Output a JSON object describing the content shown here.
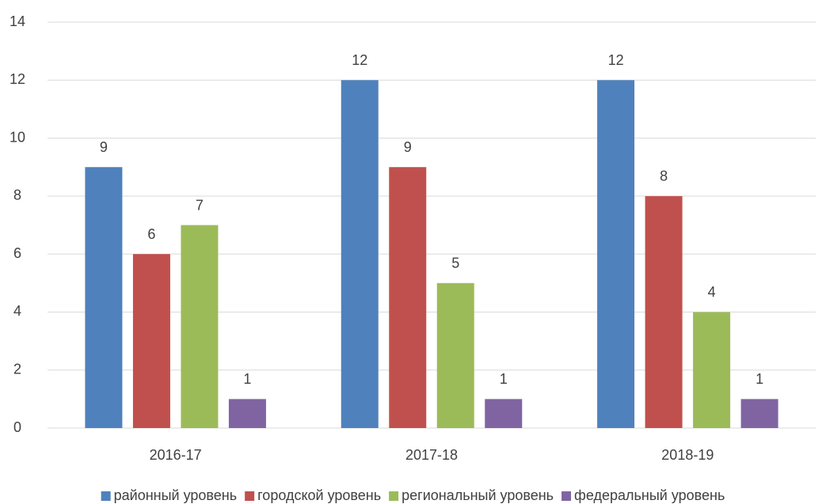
{
  "chart_data": {
    "type": "bar",
    "categories": [
      "2016-17",
      "2017-18",
      "2018-19"
    ],
    "series": [
      {
        "name": "районный уровень",
        "color": "#4f81bd",
        "values": [
          9,
          12,
          12
        ]
      },
      {
        "name": "городской уровень",
        "color": "#c0504d",
        "values": [
          6,
          9,
          8
        ]
      },
      {
        "name": "региональный уровень",
        "color": "#9bbb59",
        "values": [
          7,
          5,
          4
        ]
      },
      {
        "name": "федеральный уровень",
        "color": "#8064a2",
        "values": [
          1,
          1,
          1
        ]
      }
    ],
    "ylim": [
      0,
      14
    ],
    "yticks": [
      0,
      2,
      4,
      6,
      8,
      10,
      12,
      14
    ],
    "grid": true,
    "legend": "bottom"
  }
}
